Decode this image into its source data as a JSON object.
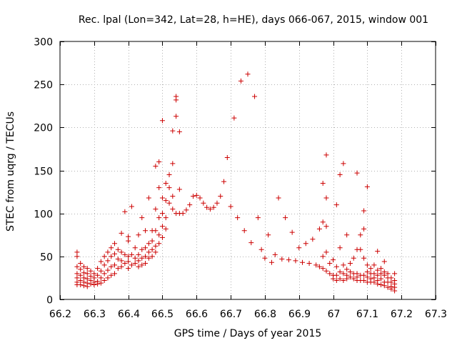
{
  "chart_data": {
    "type": "scatter",
    "title": "Rec. lpal (Lon=342, Lat=28, h=HE), days 066-067, 2015, window 001",
    "xlabel": "GPS time / Days of year 2015",
    "ylabel": "STEC from uqrg / TECUs",
    "xlim": [
      66.2,
      67.3
    ],
    "ylim": [
      0,
      300
    ],
    "x_ticks": [
      66.2,
      66.3,
      66.4,
      66.5,
      66.6,
      66.7,
      66.8,
      66.9,
      67.0,
      67.1,
      67.2,
      67.3
    ],
    "x_tick_labels": [
      "66.2",
      "66.3",
      "66.4",
      "66.5",
      "66.6",
      "66.7",
      "66.8",
      "66.9",
      "67",
      "67.1",
      "67.2",
      "67.3"
    ],
    "y_ticks": [
      0,
      50,
      100,
      150,
      200,
      250,
      300
    ],
    "y_tick_labels": [
      "0",
      "50",
      "100",
      "150",
      "200",
      "250",
      "300"
    ],
    "grid": "dotted",
    "marker": "+",
    "color": "#cc0000",
    "points": [
      [
        66.25,
        55
      ],
      [
        66.25,
        50
      ],
      [
        66.25,
        38
      ],
      [
        66.25,
        30
      ],
      [
        66.25,
        25
      ],
      [
        66.25,
        20
      ],
      [
        66.25,
        17
      ],
      [
        66.26,
        42
      ],
      [
        66.26,
        35
      ],
      [
        66.26,
        28
      ],
      [
        66.26,
        22
      ],
      [
        66.26,
        17
      ],
      [
        66.27,
        38
      ],
      [
        66.27,
        31
      ],
      [
        66.27,
        25
      ],
      [
        66.27,
        20
      ],
      [
        66.27,
        16
      ],
      [
        66.28,
        36
      ],
      [
        66.28,
        30
      ],
      [
        66.28,
        24
      ],
      [
        66.28,
        19
      ],
      [
        66.28,
        15
      ],
      [
        66.29,
        33
      ],
      [
        66.29,
        27
      ],
      [
        66.29,
        22
      ],
      [
        66.29,
        18
      ],
      [
        66.3,
        30
      ],
      [
        66.3,
        25
      ],
      [
        66.3,
        20
      ],
      [
        66.3,
        17
      ],
      [
        66.31,
        36
      ],
      [
        66.31,
        28
      ],
      [
        66.31,
        21
      ],
      [
        66.31,
        18
      ],
      [
        66.32,
        44
      ],
      [
        66.32,
        33
      ],
      [
        66.32,
        25
      ],
      [
        66.32,
        19
      ],
      [
        66.33,
        50
      ],
      [
        66.33,
        40
      ],
      [
        66.33,
        30
      ],
      [
        66.33,
        22
      ],
      [
        66.34,
        55
      ],
      [
        66.34,
        45
      ],
      [
        66.34,
        34
      ],
      [
        66.34,
        25
      ],
      [
        66.35,
        60
      ],
      [
        66.35,
        50
      ],
      [
        66.35,
        38
      ],
      [
        66.35,
        28
      ],
      [
        66.36,
        65
      ],
      [
        66.36,
        53
      ],
      [
        66.36,
        40
      ],
      [
        66.36,
        30
      ],
      [
        66.37,
        58
      ],
      [
        66.37,
        47
      ],
      [
        66.37,
        36
      ],
      [
        66.38,
        77
      ],
      [
        66.38,
        55
      ],
      [
        66.38,
        45
      ],
      [
        66.38,
        38
      ],
      [
        66.39,
        102
      ],
      [
        66.39,
        52
      ],
      [
        66.39,
        42
      ],
      [
        66.4,
        73
      ],
      [
        66.4,
        68
      ],
      [
        66.4,
        50
      ],
      [
        66.4,
        44
      ],
      [
        66.4,
        36
      ],
      [
        66.41,
        108
      ],
      [
        66.41,
        52
      ],
      [
        66.41,
        40
      ],
      [
        66.42,
        60
      ],
      [
        66.42,
        48
      ],
      [
        66.42,
        42
      ],
      [
        66.43,
        75
      ],
      [
        66.43,
        52
      ],
      [
        66.43,
        45
      ],
      [
        66.43,
        38
      ],
      [
        66.44,
        95
      ],
      [
        66.44,
        58
      ],
      [
        66.44,
        48
      ],
      [
        66.44,
        40
      ],
      [
        66.45,
        80
      ],
      [
        66.45,
        60
      ],
      [
        66.45,
        50
      ],
      [
        66.45,
        42
      ],
      [
        66.46,
        118
      ],
      [
        66.46,
        65
      ],
      [
        66.46,
        55
      ],
      [
        66.46,
        48
      ],
      [
        66.47,
        80
      ],
      [
        66.47,
        68
      ],
      [
        66.47,
        58
      ],
      [
        66.47,
        50
      ],
      [
        66.48,
        155
      ],
      [
        66.48,
        105
      ],
      [
        66.48,
        80
      ],
      [
        66.48,
        62
      ],
      [
        66.48,
        55
      ],
      [
        66.49,
        160
      ],
      [
        66.49,
        130
      ],
      [
        66.49,
        95
      ],
      [
        66.49,
        75
      ],
      [
        66.49,
        65
      ],
      [
        66.5,
        208
      ],
      [
        66.5,
        118
      ],
      [
        66.5,
        100
      ],
      [
        66.5,
        85
      ],
      [
        66.5,
        72
      ],
      [
        66.51,
        135
      ],
      [
        66.51,
        115
      ],
      [
        66.51,
        95
      ],
      [
        66.51,
        82
      ],
      [
        66.52,
        145
      ],
      [
        66.52,
        130
      ],
      [
        66.52,
        112
      ],
      [
        66.53,
        196
      ],
      [
        66.53,
        158
      ],
      [
        66.53,
        120
      ],
      [
        66.53,
        105
      ],
      [
        66.54,
        236
      ],
      [
        66.54,
        232
      ],
      [
        66.54,
        213
      ],
      [
        66.54,
        100
      ],
      [
        66.55,
        195
      ],
      [
        66.55,
        128
      ],
      [
        66.55,
        100
      ],
      [
        66.56,
        100
      ],
      [
        66.57,
        104
      ],
      [
        66.58,
        110
      ],
      [
        66.59,
        120
      ],
      [
        66.6,
        121
      ],
      [
        66.61,
        118
      ],
      [
        66.62,
        112
      ],
      [
        66.63,
        107
      ],
      [
        66.64,
        105
      ],
      [
        66.65,
        107
      ],
      [
        66.66,
        112
      ],
      [
        66.67,
        120
      ],
      [
        66.68,
        137
      ],
      [
        66.69,
        165
      ],
      [
        66.7,
        108
      ],
      [
        66.71,
        211
      ],
      [
        66.72,
        95
      ],
      [
        66.73,
        254
      ],
      [
        66.74,
        80
      ],
      [
        66.75,
        262
      ],
      [
        66.76,
        66
      ],
      [
        66.77,
        236
      ],
      [
        66.78,
        95
      ],
      [
        66.79,
        58
      ],
      [
        66.8,
        48
      ],
      [
        66.81,
        75
      ],
      [
        66.82,
        43
      ],
      [
        66.83,
        52
      ],
      [
        66.84,
        118
      ],
      [
        66.85,
        47
      ],
      [
        66.86,
        95
      ],
      [
        66.87,
        46
      ],
      [
        66.88,
        78
      ],
      [
        66.89,
        45
      ],
      [
        66.9,
        60
      ],
      [
        66.91,
        43
      ],
      [
        66.92,
        65
      ],
      [
        66.93,
        42
      ],
      [
        66.94,
        70
      ],
      [
        66.95,
        40
      ],
      [
        66.96,
        82
      ],
      [
        66.96,
        38
      ],
      [
        66.97,
        135
      ],
      [
        66.97,
        90
      ],
      [
        66.97,
        50
      ],
      [
        66.97,
        36
      ],
      [
        66.98,
        168
      ],
      [
        66.98,
        118
      ],
      [
        66.98,
        85
      ],
      [
        66.98,
        55
      ],
      [
        66.98,
        33
      ],
      [
        66.99,
        42
      ],
      [
        66.99,
        30
      ],
      [
        67.0,
        46
      ],
      [
        67.0,
        28
      ],
      [
        67.0,
        24
      ],
      [
        67.01,
        110
      ],
      [
        67.01,
        38
      ],
      [
        67.01,
        28
      ],
      [
        67.01,
        22
      ],
      [
        67.02,
        145
      ],
      [
        67.02,
        60
      ],
      [
        67.02,
        32
      ],
      [
        67.02,
        24
      ],
      [
        67.03,
        158
      ],
      [
        67.03,
        40
      ],
      [
        67.03,
        30
      ],
      [
        67.03,
        22
      ],
      [
        67.04,
        75
      ],
      [
        67.04,
        35
      ],
      [
        67.04,
        28
      ],
      [
        67.04,
        24
      ],
      [
        67.05,
        42
      ],
      [
        67.05,
        32
      ],
      [
        67.05,
        26
      ],
      [
        67.06,
        48
      ],
      [
        67.06,
        30
      ],
      [
        67.06,
        24
      ],
      [
        67.07,
        147
      ],
      [
        67.07,
        58
      ],
      [
        67.07,
        30
      ],
      [
        67.07,
        26
      ],
      [
        67.07,
        22
      ],
      [
        67.08,
        75
      ],
      [
        67.08,
        58
      ],
      [
        67.08,
        28
      ],
      [
        67.08,
        22
      ],
      [
        67.09,
        103
      ],
      [
        67.09,
        82
      ],
      [
        67.09,
        48
      ],
      [
        67.09,
        28
      ],
      [
        67.09,
        22
      ],
      [
        67.1,
        131
      ],
      [
        67.1,
        40
      ],
      [
        67.1,
        32
      ],
      [
        67.1,
        26
      ],
      [
        67.1,
        20
      ],
      [
        67.11,
        36
      ],
      [
        67.11,
        30
      ],
      [
        67.11,
        24
      ],
      [
        67.11,
        20
      ],
      [
        67.12,
        40
      ],
      [
        67.12,
        30
      ],
      [
        67.12,
        25
      ],
      [
        67.12,
        20
      ],
      [
        67.13,
        56
      ],
      [
        67.13,
        34
      ],
      [
        67.13,
        28
      ],
      [
        67.13,
        22
      ],
      [
        67.13,
        18
      ],
      [
        67.14,
        36
      ],
      [
        67.14,
        30
      ],
      [
        67.14,
        24
      ],
      [
        67.14,
        17
      ],
      [
        67.15,
        44
      ],
      [
        67.15,
        32
      ],
      [
        67.15,
        28
      ],
      [
        67.15,
        20
      ],
      [
        67.15,
        16
      ],
      [
        67.16,
        30
      ],
      [
        67.16,
        25
      ],
      [
        67.16,
        20
      ],
      [
        67.16,
        14
      ],
      [
        67.17,
        25
      ],
      [
        67.17,
        20
      ],
      [
        67.17,
        15
      ],
      [
        67.17,
        12
      ],
      [
        67.18,
        30
      ],
      [
        67.18,
        22
      ],
      [
        67.18,
        18
      ],
      [
        67.18,
        14
      ],
      [
        67.18,
        10
      ]
    ]
  }
}
